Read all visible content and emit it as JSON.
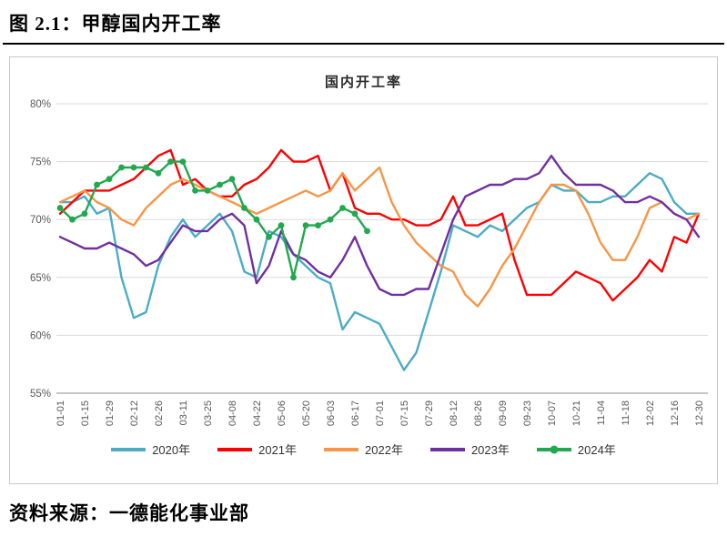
{
  "page": {
    "heading": "图 2.1：甲醇国内开工率",
    "source": "资料来源：一德能化事业部"
  },
  "chart_data": {
    "type": "line",
    "title": "国内开工率",
    "xlabel": "",
    "ylabel": "",
    "ylim": [
      55,
      80
    ],
    "yticks": [
      55,
      60,
      65,
      70,
      75,
      80
    ],
    "ytick_format": "percent",
    "grid": true,
    "legend_position": "bottom",
    "x_tick_step": 2,
    "x": [
      "01-01",
      "01-08",
      "01-15",
      "01-22",
      "01-29",
      "02-05",
      "02-12",
      "02-19",
      "02-26",
      "03-04",
      "03-11",
      "03-18",
      "03-25",
      "04-01",
      "04-08",
      "04-15",
      "04-22",
      "04-29",
      "05-06",
      "05-13",
      "05-20",
      "05-27",
      "06-03",
      "06-10",
      "06-17",
      "06-24",
      "07-01",
      "07-08",
      "07-15",
      "07-22",
      "07-29",
      "08-05",
      "08-12",
      "08-19",
      "08-26",
      "09-02",
      "09-09",
      "09-16",
      "09-23",
      "09-30",
      "10-07",
      "10-14",
      "10-21",
      "10-28",
      "11-04",
      "11-11",
      "11-18",
      "11-25",
      "12-02",
      "12-09",
      "12-16",
      "12-23",
      "12-30"
    ],
    "series": [
      {
        "name": "2020年",
        "color": "#4BACC6",
        "marker": false,
        "values": [
          71.5,
          71.5,
          72,
          70.5,
          71,
          65,
          61.5,
          62,
          66,
          68.5,
          70,
          68.5,
          69.5,
          70.5,
          69,
          65.5,
          65,
          69,
          68.5,
          67,
          66,
          65,
          64.5,
          60.5,
          62,
          61.5,
          61,
          59,
          57,
          58.5,
          62,
          65.5,
          69.5,
          69,
          68.5,
          69.5,
          69,
          70,
          71,
          71.5,
          73,
          72.5,
          72.5,
          71.5,
          71.5,
          72,
          72,
          73,
          74,
          73.5,
          71.5,
          70.5,
          70.5
        ]
      },
      {
        "name": "2021年",
        "color": "#FF0000",
        "marker": false,
        "values": [
          70.5,
          71.5,
          72.5,
          72.5,
          72.5,
          73,
          73.5,
          74.5,
          75.5,
          76,
          73,
          73.5,
          72.5,
          72,
          72,
          73,
          73.5,
          74.5,
          76,
          75,
          75,
          75.5,
          72.5,
          74,
          71,
          70.5,
          70.5,
          70,
          70,
          69.5,
          69.5,
          70,
          72,
          69.5,
          69.5,
          70,
          70.5,
          66.5,
          63.5,
          63.5,
          63.5,
          64.5,
          65.5,
          65,
          64.5,
          63,
          64,
          65,
          66.5,
          65.5,
          68.5,
          68,
          70.5
        ]
      },
      {
        "name": "2022年",
        "color": "#F79646",
        "marker": false,
        "values": [
          71.5,
          72,
          72.5,
          71.5,
          71,
          70,
          69.5,
          71,
          72,
          73,
          73.5,
          73,
          72.5,
          72,
          71.5,
          71,
          70.5,
          71,
          71.5,
          72,
          72.5,
          72,
          72.5,
          74,
          72.5,
          73.5,
          74.5,
          71.5,
          69.5,
          68,
          67,
          66,
          65.5,
          63.5,
          62.5,
          64,
          66,
          67.5,
          69.5,
          71.5,
          73,
          73,
          72.5,
          70.5,
          68,
          66.5,
          66.5,
          68.5,
          71,
          71.5,
          70.5,
          70,
          70.5
        ]
      },
      {
        "name": "2023年",
        "color": "#7030A0",
        "marker": false,
        "values": [
          68.5,
          68,
          67.5,
          67.5,
          68,
          67.5,
          67,
          66,
          66.5,
          68,
          69.5,
          69,
          69,
          70,
          70.5,
          69.5,
          64.5,
          66,
          69,
          67,
          66.5,
          65.5,
          65,
          66.5,
          68.5,
          66,
          64,
          63.5,
          63.5,
          64,
          64,
          67,
          70,
          72,
          72.5,
          73,
          73,
          73.5,
          73.5,
          74,
          75.5,
          74,
          73,
          73,
          73,
          72.5,
          71.5,
          71.5,
          72,
          71.5,
          70.5,
          70,
          68.5
        ]
      },
      {
        "name": "2024年",
        "color": "#22A84E",
        "marker": true,
        "values": [
          71,
          70,
          70.5,
          73,
          73.5,
          74.5,
          74.5,
          74.5,
          74,
          75,
          75,
          72.5,
          72.5,
          73,
          73.5,
          71,
          70,
          68.5,
          69.5,
          65,
          69.5,
          69.5,
          70,
          71,
          70.5,
          69,
          null,
          null,
          null,
          null,
          null,
          null,
          null,
          null,
          null,
          null,
          null,
          null,
          null,
          null,
          null,
          null,
          null,
          null,
          null,
          null,
          null,
          null,
          null,
          null,
          null,
          null,
          null
        ]
      }
    ]
  }
}
